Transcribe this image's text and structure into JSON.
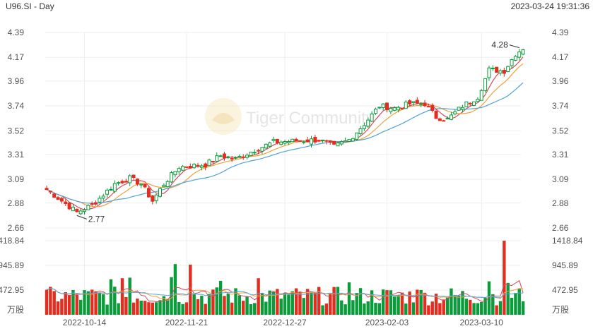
{
  "header": {
    "symbol_label": "U96.SI - Day",
    "datetime": "2023-03-24 19:31:36"
  },
  "watermark": {
    "text": "Tiger Community"
  },
  "colors": {
    "up": "#0a9b3a",
    "down": "#e32d1f",
    "ma_fast": "#d94a5a",
    "ma_mid": "#f2a03c",
    "ma_slow": "#4fa3db",
    "grid": "#eeeeee",
    "axis_text": "#555555"
  },
  "chart_data": [
    {
      "type": "candlestick",
      "series_name": "U96.SI",
      "ylim": [
        2.66,
        4.39
      ],
      "y_ticks": [
        "4.39",
        "4.17",
        "3.96",
        "3.74",
        "3.52",
        "3.31",
        "3.09",
        "2.88",
        "2.66"
      ],
      "x_tick_labels": [
        {
          "index": 10,
          "label": "2022-10-14"
        },
        {
          "index": 37,
          "label": "2022-11-21"
        },
        {
          "index": 63,
          "label": "2022-12-27"
        },
        {
          "index": 90,
          "label": "2023-02-03"
        },
        {
          "index": 115,
          "label": "2023-03-10"
        }
      ],
      "annotations": [
        {
          "label": "2.77",
          "index": 8,
          "value": 2.77
        },
        {
          "label": "4.28",
          "index": 125,
          "value": 4.28
        }
      ],
      "anchors": [
        {
          "index": 0,
          "close": 3.0
        },
        {
          "index": 8,
          "close": 2.8
        },
        {
          "index": 12,
          "close": 2.86
        },
        {
          "index": 18,
          "close": 3.05
        },
        {
          "index": 22,
          "close": 3.1
        },
        {
          "index": 25,
          "close": 3.05
        },
        {
          "index": 28,
          "close": 2.9
        },
        {
          "index": 31,
          "close": 3.05
        },
        {
          "index": 35,
          "close": 3.2
        },
        {
          "index": 42,
          "close": 3.22
        },
        {
          "index": 46,
          "close": 3.3
        },
        {
          "index": 50,
          "close": 3.27
        },
        {
          "index": 55,
          "close": 3.35
        },
        {
          "index": 60,
          "close": 3.42
        },
        {
          "index": 66,
          "close": 3.43
        },
        {
          "index": 72,
          "close": 3.44
        },
        {
          "index": 76,
          "close": 3.38
        },
        {
          "index": 80,
          "close": 3.44
        },
        {
          "index": 84,
          "close": 3.58
        },
        {
          "index": 88,
          "close": 3.74
        },
        {
          "index": 92,
          "close": 3.72
        },
        {
          "index": 96,
          "close": 3.76
        },
        {
          "index": 100,
          "close": 3.76
        },
        {
          "index": 103,
          "close": 3.64
        },
        {
          "index": 106,
          "close": 3.62
        },
        {
          "index": 110,
          "close": 3.74
        },
        {
          "index": 114,
          "close": 3.82
        },
        {
          "index": 117,
          "close": 4.06
        },
        {
          "index": 121,
          "close": 4.05
        },
        {
          "index": 124,
          "close": 4.2
        },
        {
          "index": 126,
          "close": 4.25
        }
      ]
    },
    {
      "type": "bar",
      "series_name": "Volume",
      "unit_label": "万股",
      "ylim": [
        0,
        1418.84
      ],
      "y_ticks": [
        "1418.84",
        "945.89",
        "472.95"
      ],
      "spikes": [
        {
          "index": 34,
          "value": 970
        },
        {
          "index": 38,
          "value": 960
        },
        {
          "index": 33,
          "value": 720
        },
        {
          "index": 20,
          "value": 700
        },
        {
          "index": 22,
          "value": 710
        },
        {
          "index": 17,
          "value": 680
        },
        {
          "index": 46,
          "value": 650
        },
        {
          "index": 56,
          "value": 700
        },
        {
          "index": 80,
          "value": 620
        },
        {
          "index": 121,
          "value": 1418
        },
        {
          "index": 122,
          "value": 610
        },
        {
          "index": 127,
          "value": 640
        },
        {
          "index": 98,
          "value": 480
        },
        {
          "index": 117,
          "value": 640
        }
      ]
    }
  ]
}
